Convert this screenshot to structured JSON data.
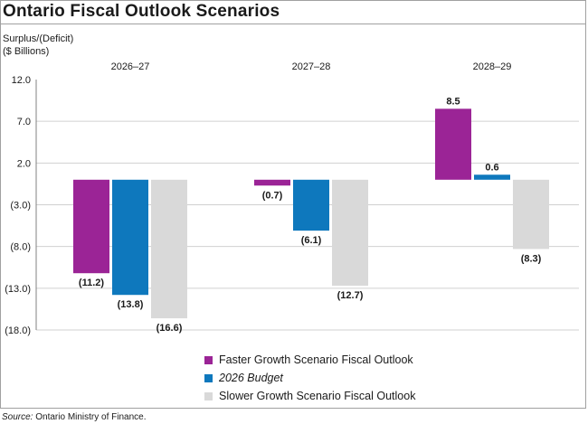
{
  "header": {
    "title": "Ontario Fiscal Outlook Scenarios",
    "ylabel_line1": "Surplus/(Deficit)",
    "ylabel_line2": "($ Billions)"
  },
  "source": {
    "label": "Source:",
    "text": "Ontario Ministry of Finance."
  },
  "colors": {
    "faster": "#9b2496",
    "budget": "#0e78bd",
    "slower": "#d9d9d9",
    "grid": "#d0d0d0"
  },
  "chart_data": {
    "type": "bar",
    "title": "Ontario Fiscal Outlook Scenarios",
    "ylabel": "Surplus/(Deficit) ($ Billions)",
    "xlabel": "",
    "categories": [
      "2026–27",
      "2027–28",
      "2028–29"
    ],
    "ylim": [
      -18.0,
      12.0
    ],
    "yticks": [
      12.0,
      7.0,
      2.0,
      -3.0,
      -8.0,
      -13.0,
      -18.0
    ],
    "ytick_labels": [
      "12.0",
      "7.0",
      "2.0",
      "(3.0)",
      "(8.0)",
      "(13.0)",
      "(18.0)"
    ],
    "legend_position": "bottom",
    "series": [
      {
        "name": "Faster Growth Scenario Fiscal Outlook",
        "color": "#9b2496",
        "italic": false,
        "values": [
          -11.2,
          -0.7,
          8.5
        ],
        "labels": [
          "(11.2)",
          "(0.7)",
          "8.5"
        ]
      },
      {
        "name": "2026 Budget",
        "color": "#0e78bd",
        "italic": true,
        "values": [
          -13.8,
          -6.1,
          0.6
        ],
        "labels": [
          "(13.8)",
          "(6.1)",
          "0.6"
        ]
      },
      {
        "name": "Slower Growth Scenario Fiscal Outlook",
        "color": "#d9d9d9",
        "italic": false,
        "values": [
          -16.6,
          -12.7,
          -8.3
        ],
        "labels": [
          "(16.6)",
          "(12.7)",
          "(8.3)"
        ]
      }
    ]
  }
}
